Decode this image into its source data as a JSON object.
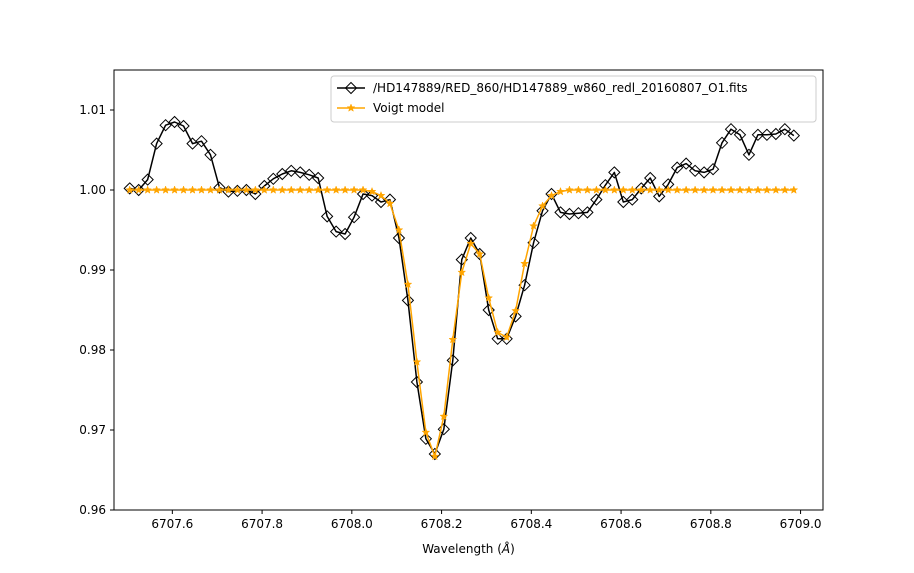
{
  "chart_data": {
    "type": "line",
    "xlabel_prefix": "Wavelength (",
    "xlabel_unit": "Å",
    "xlabel_suffix": ")",
    "xlim": [
      6707.47,
      6709.05
    ],
    "ylim": [
      0.96,
      1.015
    ],
    "xticks": [
      6707.6,
      6707.8,
      6708.0,
      6708.2,
      6708.4,
      6708.6,
      6708.8,
      6709.0
    ],
    "xtick_labels": [
      "6707.6",
      "6707.8",
      "6708.0",
      "6708.2",
      "6708.4",
      "6708.6",
      "6708.8",
      "6709.0"
    ],
    "yticks": [
      0.96,
      0.97,
      0.98,
      0.99,
      1.0,
      1.01
    ],
    "ytick_labels": [
      "0.96",
      "0.97",
      "0.98",
      "0.99",
      "1.00",
      "1.01"
    ],
    "grid": false,
    "legend_position": "top-right",
    "series": [
      {
        "name": "/HD147889/RED_860/HD147889_w860_redl_20160807_O1.fits",
        "color": "#000000",
        "marker": "diamond-open",
        "x": [
          6707.505,
          6707.525,
          6707.545,
          6707.565,
          6707.585,
          6707.605,
          6707.625,
          6707.645,
          6707.665,
          6707.685,
          6707.705,
          6707.725,
          6707.745,
          6707.765,
          6707.785,
          6707.805,
          6707.825,
          6707.845,
          6707.865,
          6707.885,
          6707.905,
          6707.925,
          6707.945,
          6707.965,
          6707.985,
          6708.005,
          6708.025,
          6708.045,
          6708.065,
          6708.085,
          6708.105,
          6708.125,
          6708.145,
          6708.165,
          6708.185,
          6708.205,
          6708.225,
          6708.245,
          6708.265,
          6708.285,
          6708.305,
          6708.325,
          6708.345,
          6708.365,
          6708.385,
          6708.405,
          6708.425,
          6708.445,
          6708.465,
          6708.485,
          6708.505,
          6708.525,
          6708.545,
          6708.565,
          6708.585,
          6708.605,
          6708.625,
          6708.645,
          6708.665,
          6708.685,
          6708.705,
          6708.725,
          6708.745,
          6708.765,
          6708.785,
          6708.805,
          6708.825,
          6708.845,
          6708.865,
          6708.885,
          6708.905,
          6708.925,
          6708.945,
          6708.965,
          6708.985
        ],
        "y": [
          1.0002,
          1.0,
          1.0013,
          1.0058,
          1.0081,
          1.0085,
          1.008,
          1.0058,
          1.0061,
          1.0044,
          1.0003,
          0.9998,
          0.9999,
          1.0,
          0.9995,
          1.0005,
          1.0014,
          1.002,
          1.0024,
          1.0022,
          1.0019,
          1.0015,
          0.9967,
          0.9948,
          0.9945,
          0.9966,
          0.9995,
          0.9993,
          0.9985,
          0.9988,
          0.994,
          0.9862,
          0.976,
          0.9689,
          0.967,
          0.9701,
          0.9787,
          0.9913,
          0.994,
          0.992,
          0.985,
          0.9814,
          0.9814,
          0.9842,
          0.9881,
          0.9934,
          0.9974,
          0.9995,
          0.9972,
          0.997,
          0.9971,
          0.9972,
          0.9988,
          1.0006,
          1.0022,
          0.9985,
          0.9988,
          1.0002,
          1.0015,
          0.9992,
          1.0007,
          1.0028,
          1.0033,
          1.0024,
          1.0022,
          1.0026,
          1.0059,
          1.0076,
          1.0069,
          1.0044,
          1.0069,
          1.0069,
          1.007,
          1.0076,
          1.0068
        ]
      },
      {
        "name": "Voigt model",
        "color": "#ffa500",
        "marker": "star",
        "x": [
          6707.505,
          6707.525,
          6707.545,
          6707.565,
          6707.585,
          6707.605,
          6707.625,
          6707.645,
          6707.665,
          6707.685,
          6707.705,
          6707.725,
          6707.745,
          6707.765,
          6707.785,
          6707.805,
          6707.825,
          6707.845,
          6707.865,
          6707.885,
          6707.905,
          6707.925,
          6707.945,
          6707.965,
          6707.985,
          6708.005,
          6708.025,
          6708.045,
          6708.065,
          6708.085,
          6708.105,
          6708.125,
          6708.145,
          6708.165,
          6708.185,
          6708.205,
          6708.225,
          6708.245,
          6708.265,
          6708.285,
          6708.305,
          6708.325,
          6708.345,
          6708.365,
          6708.385,
          6708.405,
          6708.425,
          6708.445,
          6708.465,
          6708.485,
          6708.505,
          6708.525,
          6708.545,
          6708.565,
          6708.585,
          6708.605,
          6708.625,
          6708.645,
          6708.665,
          6708.685,
          6708.705,
          6708.725,
          6708.745,
          6708.765,
          6708.785,
          6708.805,
          6708.825,
          6708.845,
          6708.865,
          6708.885,
          6708.905,
          6708.925,
          6708.945,
          6708.965,
          6708.985
        ],
        "y": [
          1.0,
          1.0,
          1.0,
          1.0,
          1.0,
          1.0,
          1.0,
          1.0,
          1.0,
          1.0,
          1.0,
          1.0,
          1.0,
          1.0,
          1.0,
          1.0,
          1.0,
          1.0,
          1.0,
          1.0,
          1.0,
          1.0,
          1.0,
          1.0,
          1.0,
          1.0,
          1.0,
          0.9998,
          0.9993,
          0.9983,
          0.995,
          0.9882,
          0.9785,
          0.9697,
          0.9667,
          0.9717,
          0.9813,
          0.9897,
          0.9933,
          0.992,
          0.9865,
          0.9822,
          0.9816,
          0.9849,
          0.9908,
          0.9955,
          0.998,
          0.9993,
          0.9998,
          1.0,
          1.0,
          1.0,
          1.0,
          1.0,
          1.0,
          1.0,
          1.0,
          1.0,
          1.0,
          1.0,
          1.0,
          1.0,
          1.0,
          1.0,
          1.0,
          1.0,
          1.0,
          1.0,
          1.0,
          1.0,
          1.0,
          1.0,
          1.0,
          1.0,
          1.0
        ]
      }
    ]
  }
}
